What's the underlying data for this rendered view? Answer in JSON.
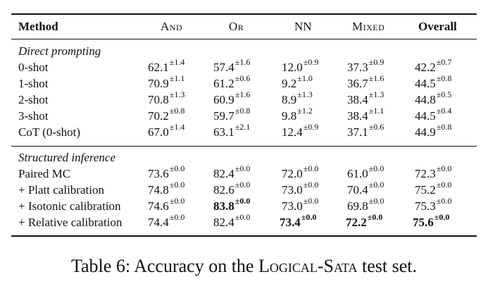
{
  "header": {
    "method": "Method",
    "and": "And",
    "or": "Or",
    "nn": "NN",
    "mixed": "Mixed",
    "overall": "Overall"
  },
  "sections": [
    {
      "title": "Direct prompting",
      "rows": [
        {
          "method": "0-shot",
          "and": "62.1",
          "and_sd": "±1.4",
          "or": "57.4",
          "or_sd": "±1.6",
          "nn": "12.0",
          "nn_sd": "±0.9",
          "mixed": "37.3",
          "mixed_sd": "±0.9",
          "overall": "42.2",
          "overall_sd": "±0.7"
        },
        {
          "method": "1-shot",
          "and": "70.9",
          "and_sd": "±1.1",
          "or": "61.2",
          "or_sd": "±0.6",
          "nn": "9.2",
          "nn_sd": "±1.0",
          "mixed": "36.7",
          "mixed_sd": "±1.6",
          "overall": "44.5",
          "overall_sd": "±0.8"
        },
        {
          "method": "2-shot",
          "and": "70.8",
          "and_sd": "±1.3",
          "or": "60.9",
          "or_sd": "±1.6",
          "nn": "8.9",
          "nn_sd": "±1.3",
          "mixed": "38.4",
          "mixed_sd": "±1.3",
          "overall": "44.8",
          "overall_sd": "±0.5"
        },
        {
          "method": "3-shot",
          "and": "70.2",
          "and_sd": "±0.8",
          "or": "59.7",
          "or_sd": "±0.8",
          "nn": "9.8",
          "nn_sd": "±1.2",
          "mixed": "38.4",
          "mixed_sd": "±1.1",
          "overall": "44.5",
          "overall_sd": "±0.4"
        },
        {
          "method": "CoT (0-shot)",
          "and": "67.0",
          "and_sd": "±1.4",
          "or": "63.1",
          "or_sd": "±2.1",
          "nn": "12.4",
          "nn_sd": "±0.9",
          "mixed": "37.1",
          "mixed_sd": "±0.6",
          "overall": "44.9",
          "overall_sd": "±0.8"
        }
      ]
    },
    {
      "title": "Structured inference",
      "rows": [
        {
          "method": "Paired MC",
          "and": "73.6",
          "and_sd": "±0.0",
          "or": "82.4",
          "or_sd": "±0.0",
          "nn": "72.0",
          "nn_sd": "±0.0",
          "mixed": "61.0",
          "mixed_sd": "±0.0",
          "overall": "72.3",
          "overall_sd": "±0.0"
        },
        {
          "method": "+ Platt calibration",
          "and": "74.8",
          "and_sd": "±0.0",
          "or": "82.6",
          "or_sd": "±0.0",
          "nn": "73.0",
          "nn_sd": "±0.0",
          "mixed": "70.4",
          "mixed_sd": "±0.0",
          "overall": "75.2",
          "overall_sd": "±0.0"
        },
        {
          "method": "+ Isotonic calibration",
          "and": "74.6",
          "and_sd": "±0.0",
          "or": "83.8",
          "or_sd": "±0.0",
          "nn": "73.0",
          "nn_sd": "±0.0",
          "mixed": "69.8",
          "mixed_sd": "±0.0",
          "overall": "75.3",
          "overall_sd": "±0.0"
        },
        {
          "method": "+ Relative calibration",
          "and": "74.4",
          "and_sd": "±0.0",
          "or": "82.4",
          "or_sd": "±0.0",
          "nn": "73.4",
          "nn_sd": "±0.0",
          "mixed": "72.2",
          "mixed_sd": "±0.0",
          "overall": "75.6",
          "overall_sd": "±0.0"
        }
      ]
    }
  ],
  "caption": {
    "prefix": "Table 6: Accuracy on the ",
    "dataset": "Logical-Sata",
    "suffix": " test set."
  }
}
